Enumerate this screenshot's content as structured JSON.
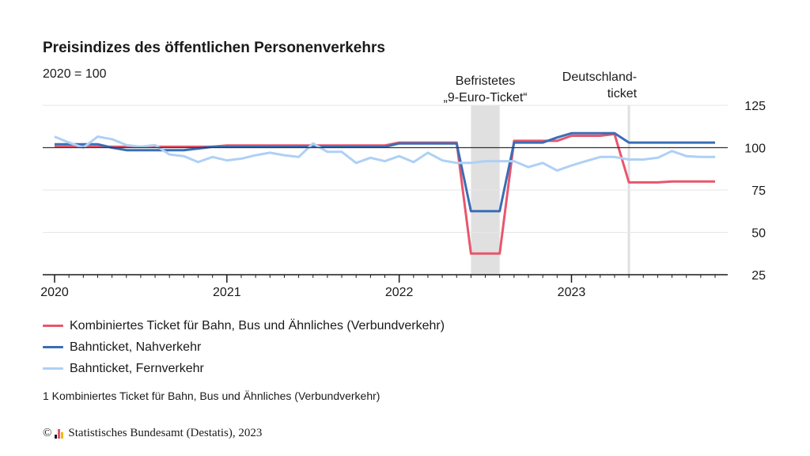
{
  "title": "Preisindizes des öffentlichen Personenverkehrs",
  "subtitle": "2020 = 100",
  "footnote": "1 Kombiniertes Ticket für Bahn, Bus und Ähnliches (Verbundverkehr)",
  "source": {
    "copyright_symbol": "©",
    "text": "Statistisches Bundesamt (Destatis), 2023"
  },
  "colors": {
    "kombi": "#e8566c",
    "nah": "#3a6eb5",
    "fern": "#aed0f5",
    "shade": "#e0e0e0",
    "grid": "#e6e6e6",
    "baseline": "#333333",
    "logo_bars": [
      "#1a1a1a",
      "#e8566c",
      "#f2b705"
    ]
  },
  "chart_data": {
    "type": "line",
    "ylabel": "2020 = 100",
    "ylim": [
      25,
      125
    ],
    "yticks": [
      25,
      50,
      75,
      100,
      125
    ],
    "reference_line": 100,
    "grid": true,
    "legend_position": "bottom",
    "x_start": "2020-01",
    "x_end": "2023-11",
    "xtick_labels": [
      {
        "label": "2020",
        "month": "2020-01"
      },
      {
        "label": "2021",
        "month": "2021-01"
      },
      {
        "label": "2022",
        "month": "2022-01"
      },
      {
        "label": "2023",
        "month": "2023-01"
      }
    ],
    "annotations": [
      {
        "lines": [
          "Befristetes",
          "„9-Euro-Ticket“"
        ],
        "start": "2022-06",
        "end": "2022-08",
        "kind": "band"
      },
      {
        "lines": [
          "Deutschland-",
          "ticket"
        ],
        "start": "2023-05",
        "kind": "line"
      }
    ],
    "series": [
      {
        "name": "Kombiniertes Ticket für Bahn, Bus und Ähnliches (Verbundverkehr)",
        "key": "kombi",
        "values": [
          100.5,
          100.5,
          100.5,
          100.5,
          100.5,
          100.5,
          100.5,
          100.5,
          100.5,
          100.5,
          100.5,
          100.5,
          101.3,
          101.3,
          101.3,
          101.3,
          101.3,
          101.3,
          101.3,
          101.3,
          101.3,
          101.3,
          101.3,
          101.3,
          103,
          103,
          103,
          103,
          103,
          37.5,
          37.5,
          37.5,
          104,
          104,
          104,
          104,
          107,
          107,
          107,
          108,
          79.5,
          79.5,
          79.5,
          80,
          80,
          80,
          80
        ]
      },
      {
        "name": "Bahnticket, Nahverkehr",
        "key": "nah",
        "values": [
          102,
          102,
          102,
          102,
          100,
          98.5,
          98.5,
          98.5,
          98.5,
          98.5,
          99.5,
          100.5,
          100.5,
          100.5,
          100.5,
          100.5,
          100.5,
          100.5,
          100.5,
          100.5,
          100.5,
          100.5,
          100.5,
          100.5,
          102.5,
          102.5,
          102.5,
          102.5,
          102.5,
          62.5,
          62.5,
          62.5,
          103,
          103,
          103,
          106,
          108.5,
          108.5,
          108.5,
          108.5,
          103,
          103,
          103,
          103,
          103,
          103,
          103
        ]
      },
      {
        "name": "Bahnticket, Fernverkehr",
        "key": "fern",
        "values": [
          106.5,
          103,
          100,
          106.5,
          105,
          101.5,
          100.5,
          101.5,
          96,
          95,
          91.5,
          94.5,
          92.5,
          93.5,
          95.5,
          97,
          95.5,
          94.5,
          102.5,
          97.5,
          97.5,
          91,
          94,
          92,
          95,
          91.5,
          97,
          92.5,
          91,
          91,
          92,
          92,
          92,
          88.5,
          91,
          86.5,
          89.5,
          92,
          94.5,
          94.5,
          93,
          93,
          94,
          98,
          95,
          94.5,
          94.5
        ]
      }
    ]
  }
}
